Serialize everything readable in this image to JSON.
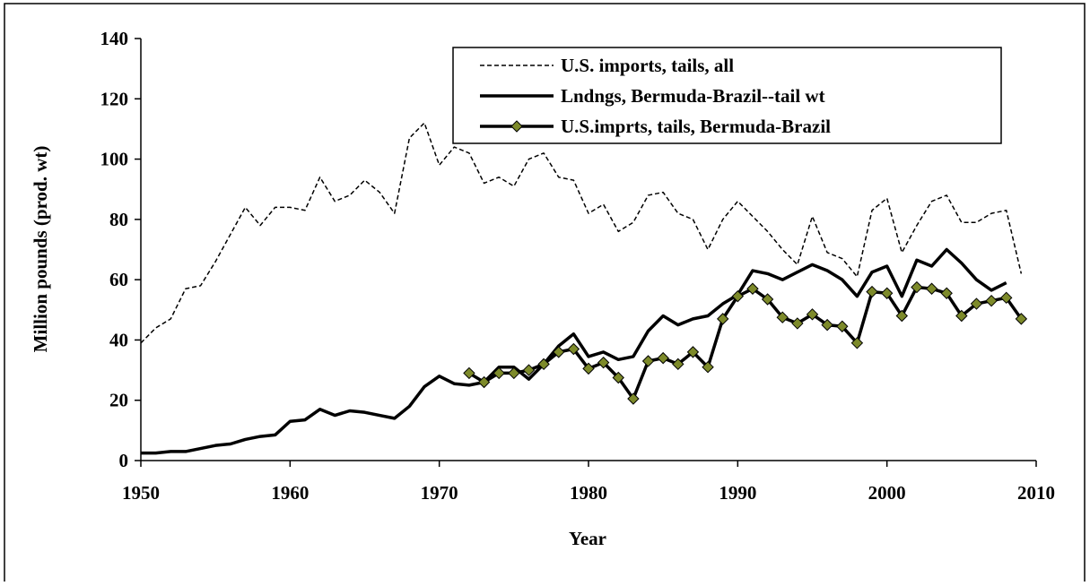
{
  "chart_data": {
    "type": "line",
    "x_label": "Year",
    "y_label": "Million pounds (prod. wt)",
    "xlim": [
      1950,
      2010
    ],
    "xticks": [
      1950,
      1960,
      1970,
      1980,
      1990,
      2000,
      2010
    ],
    "ylim": [
      0,
      140
    ],
    "yticks": [
      0,
      20,
      40,
      60,
      80,
      100,
      120,
      140
    ],
    "legend": "upper right",
    "series": [
      {
        "name": "U.S. imports, tails, all",
        "color": "#000000",
        "line_style": "dashed",
        "line_width": 1.5,
        "x": [
          1950,
          1951,
          1952,
          1953,
          1954,
          1955,
          1956,
          1957,
          1958,
          1959,
          1960,
          1961,
          1962,
          1963,
          1964,
          1965,
          1966,
          1967,
          1968,
          1969,
          1970,
          1971,
          1972,
          1973,
          1974,
          1975,
          1976,
          1977,
          1978,
          1979,
          1980,
          1981,
          1982,
          1983,
          1984,
          1985,
          1986,
          1987,
          1988,
          1989,
          1990,
          1991,
          1992,
          1993,
          1994,
          1995,
          1996,
          1997,
          1998,
          1999,
          2000,
          2001,
          2002,
          2003,
          2004,
          2005,
          2006,
          2007,
          2008,
          2009
        ],
        "values": [
          39,
          44,
          47,
          57,
          58,
          66,
          75,
          84,
          78,
          84,
          84,
          83,
          94,
          86,
          88,
          93,
          89,
          82,
          107,
          112,
          98,
          104,
          102,
          92,
          94,
          91,
          100,
          102,
          94,
          93,
          82,
          85,
          76,
          79,
          88,
          89,
          82,
          80,
          70,
          80,
          86,
          81,
          76,
          70,
          65,
          81,
          69,
          67,
          61,
          83,
          87,
          69,
          78,
          86,
          88,
          79,
          79,
          82,
          83,
          62
        ]
      },
      {
        "name": "Lndngs, Bermuda-Brazil--tail wt",
        "color": "#000000",
        "line_style": "solid",
        "line_width": 3.5,
        "x": [
          1950,
          1951,
          1952,
          1953,
          1954,
          1955,
          1956,
          1957,
          1958,
          1959,
          1960,
          1961,
          1962,
          1963,
          1964,
          1965,
          1966,
          1967,
          1968,
          1969,
          1970,
          1971,
          1972,
          1973,
          1974,
          1975,
          1976,
          1977,
          1978,
          1979,
          1980,
          1981,
          1982,
          1983,
          1984,
          1985,
          1986,
          1987,
          1988,
          1989,
          1990,
          1991,
          1992,
          1993,
          1994,
          1995,
          1996,
          1997,
          1998,
          1999,
          2000,
          2001,
          2002,
          2003,
          2004,
          2005,
          2006,
          2007,
          2008
        ],
        "values": [
          2.5,
          2.5,
          3,
          3,
          4,
          5,
          5.5,
          7,
          8,
          8.5,
          13,
          13.5,
          17,
          15,
          16.5,
          16,
          15,
          14,
          18,
          24.5,
          28,
          25.5,
          25,
          26,
          31,
          31,
          27,
          32,
          38,
          42,
          34.5,
          36,
          33.5,
          34.5,
          43,
          48,
          45,
          47,
          48,
          52,
          55,
          63,
          62,
          60,
          62.5,
          65,
          63,
          60,
          54.5,
          62.5,
          64.5,
          54.5,
          66.5,
          64.5,
          70,
          65.5,
          60,
          56.5,
          59
        ]
      },
      {
        "name": "U.S.imprts, tails, Bermuda-Brazil",
        "color": "#000000",
        "line_style": "solid",
        "line_width": 3.5,
        "marker": "diamond",
        "marker_color": "#7d8a2a",
        "x": [
          1972,
          1973,
          1974,
          1975,
          1976,
          1977,
          1978,
          1979,
          1980,
          1981,
          1982,
          1983,
          1984,
          1985,
          1986,
          1987,
          1988,
          1989,
          1990,
          1991,
          1992,
          1993,
          1994,
          1995,
          1996,
          1997,
          1998,
          1999,
          2000,
          2001,
          2002,
          2003,
          2004,
          2005,
          2006,
          2007,
          2008,
          2009
        ],
        "values": [
          29,
          26,
          29,
          29,
          30,
          32,
          36,
          37,
          30.5,
          32.5,
          27.5,
          20.5,
          33,
          34,
          32,
          36,
          31,
          47,
          54.5,
          57,
          53.5,
          47.5,
          45.5,
          48.5,
          45,
          44.5,
          39,
          56,
          55.5,
          48,
          57.5,
          57,
          55.5,
          48,
          52,
          53,
          54,
          47
        ]
      }
    ]
  }
}
